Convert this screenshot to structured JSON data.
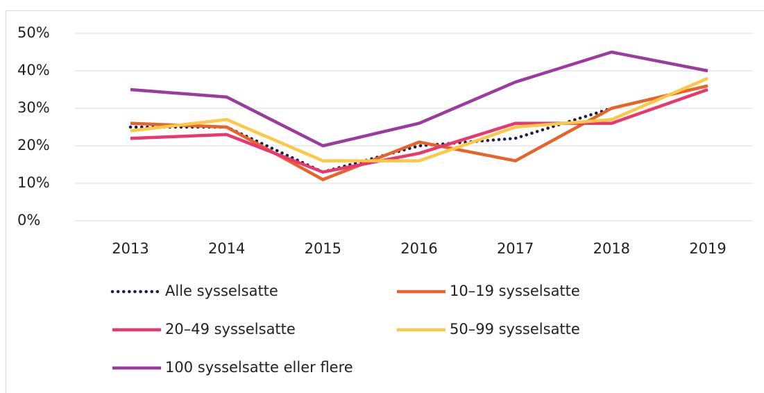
{
  "chart_data": {
    "type": "line",
    "categories": [
      "2013",
      "2014",
      "2015",
      "2016",
      "2017",
      "2018",
      "2019"
    ],
    "series": [
      {
        "name": "Alle sysselsatte",
        "color": "#1c1f4a",
        "dashed": true,
        "values": [
          25,
          25,
          13,
          20,
          22,
          30,
          36
        ]
      },
      {
        "name": "10–19 sysselsatte",
        "color": "#e8632a",
        "values": [
          26,
          25,
          11,
          21,
          16,
          30,
          36
        ]
      },
      {
        "name": "20–49 sysselsatte",
        "color": "#e8386e",
        "values": [
          22,
          23,
          13,
          18,
          26,
          26,
          35
        ]
      },
      {
        "name": "50–99 sysselsatte",
        "color": "#fcc846",
        "values": [
          24,
          27,
          16,
          16,
          25,
          27,
          38
        ]
      },
      {
        "name": "100 sysselsatte eller flere",
        "color": "#9b3a9f",
        "values": [
          35,
          33,
          20,
          26,
          37,
          45,
          40
        ]
      }
    ],
    "ylim": [
      0,
      50
    ],
    "yticks": [
      {
        "value": 0,
        "label": "0%"
      },
      {
        "value": 10,
        "label": "10%"
      },
      {
        "value": 20,
        "label": "20%"
      },
      {
        "value": 30,
        "label": "30%"
      },
      {
        "value": 40,
        "label": "40%"
      },
      {
        "value": 50,
        "label": "50%"
      }
    ],
    "grid": true,
    "legend": "bottom"
  }
}
